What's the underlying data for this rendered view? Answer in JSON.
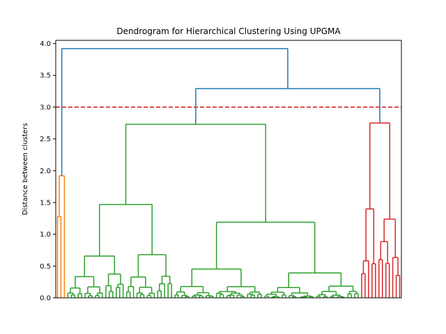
{
  "chart_data": {
    "type": "dendrogram",
    "title": "Dendrogram for Hierarchical Clustering Using UPGMA",
    "xlabel": "",
    "ylabel": "Distance between clusters",
    "ylim": [
      0,
      4.05
    ],
    "yticks": [
      "0.0",
      "0.5",
      "1.0",
      "1.5",
      "2.0",
      "2.5",
      "3.0",
      "3.5",
      "4.0"
    ],
    "leaf_count": 100,
    "cut_threshold": 3.0,
    "threshold_color": "#d62728",
    "link_color_above_threshold": "#1f77b4",
    "clusters": [
      {
        "color": "#ff7f0e",
        "leaves": 3,
        "merge_height": 1.92
      },
      {
        "color": "#2ca02c",
        "leaves": 85,
        "merge_height": 2.73
      },
      {
        "color": "#d62728",
        "leaves": 12,
        "merge_height": 2.75
      }
    ],
    "top_merges": [
      {
        "heights": 3.29,
        "joins": "green cluster + red cluster"
      },
      {
        "heights": 3.92,
        "joins": "orange cluster + rest"
      }
    ]
  }
}
